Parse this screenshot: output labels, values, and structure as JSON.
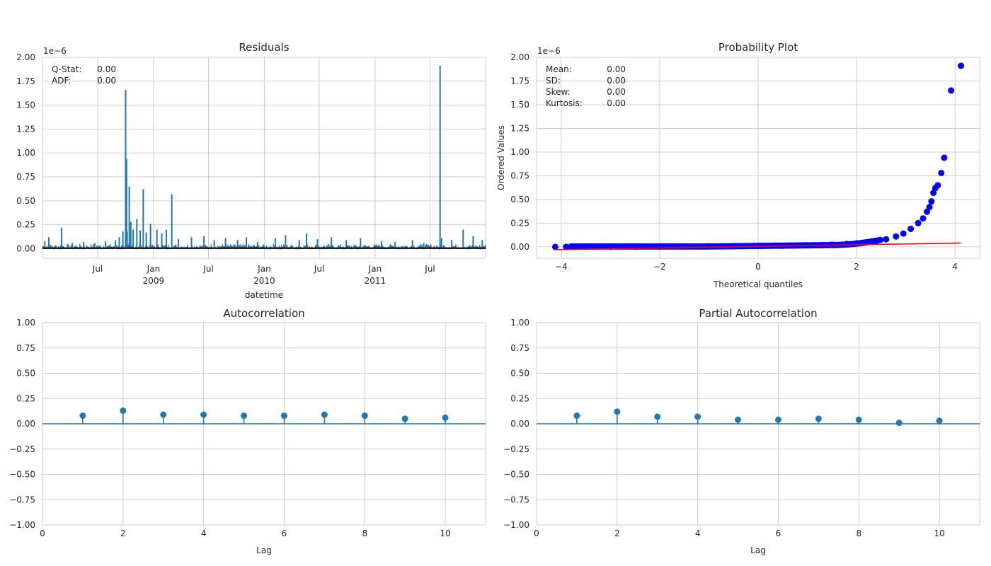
{
  "colors": {
    "series_blue": "#1f77b4",
    "series_black": "#000000",
    "qq_points": "#0000ff",
    "qq_line": "#ff0000",
    "grid": "#cccccc",
    "text": "#262626"
  },
  "chart_data": [
    {
      "id": "residuals",
      "type": "line",
      "title": "Residuals",
      "xlabel": "datetime",
      "ylabel": "",
      "offset_text": "1e−6",
      "ylim": [
        -0.1,
        2.0
      ],
      "yticks": [
        0.0,
        0.25,
        0.5,
        0.75,
        1.0,
        1.25,
        1.5,
        1.75,
        2.0
      ],
      "ytick_labels": [
        "0.00",
        "0.25",
        "0.50",
        "0.75",
        "1.00",
        "1.25",
        "1.50",
        "1.75",
        "2.00"
      ],
      "xlim": [
        "2008-01-01",
        "2011-12-31"
      ],
      "xticks": [
        {
          "date": "2008-07-01",
          "label": "Jul",
          "label2": ""
        },
        {
          "date": "2009-01-01",
          "label": "Jan",
          "label2": "2009"
        },
        {
          "date": "2009-07-01",
          "label": "Jul",
          "label2": ""
        },
        {
          "date": "2010-01-01",
          "label": "Jan",
          "label2": "2010"
        },
        {
          "date": "2010-07-01",
          "label": "Jul",
          "label2": ""
        },
        {
          "date": "2011-01-01",
          "label": "Jan",
          "label2": "2011"
        },
        {
          "date": "2011-07-01",
          "label": "Jul",
          "label2": ""
        }
      ],
      "spikes": [
        {
          "date": "2008-01-09",
          "value": 0.08
        },
        {
          "date": "2008-01-22",
          "value": 0.12
        },
        {
          "date": "2008-03-04",
          "value": 0.22
        },
        {
          "date": "2008-04-08",
          "value": 0.06
        },
        {
          "date": "2008-05-16",
          "value": 0.07
        },
        {
          "date": "2008-06-21",
          "value": 0.06
        },
        {
          "date": "2008-07-27",
          "value": 0.08
        },
        {
          "date": "2008-08-28",
          "value": 0.09
        },
        {
          "date": "2008-09-10",
          "value": 0.12
        },
        {
          "date": "2008-09-22",
          "value": 0.18
        },
        {
          "date": "2008-10-01",
          "value": 1.66
        },
        {
          "date": "2008-10-04",
          "value": 0.94
        },
        {
          "date": "2008-10-06",
          "value": 0.18
        },
        {
          "date": "2008-10-13",
          "value": 0.65
        },
        {
          "date": "2008-10-18",
          "value": 0.28
        },
        {
          "date": "2008-10-26",
          "value": 0.2
        },
        {
          "date": "2008-11-07",
          "value": 0.31
        },
        {
          "date": "2008-11-18",
          "value": 0.19
        },
        {
          "date": "2008-11-28",
          "value": 0.62
        },
        {
          "date": "2008-12-08",
          "value": 0.17
        },
        {
          "date": "2008-12-22",
          "value": 0.26
        },
        {
          "date": "2009-01-12",
          "value": 0.2
        },
        {
          "date": "2009-01-28",
          "value": 0.16
        },
        {
          "date": "2009-02-12",
          "value": 0.2
        },
        {
          "date": "2009-03-02",
          "value": 0.57
        },
        {
          "date": "2009-03-24",
          "value": 0.1
        },
        {
          "date": "2009-05-06",
          "value": 0.12
        },
        {
          "date": "2009-06-16",
          "value": 0.13
        },
        {
          "date": "2009-07-20",
          "value": 0.09
        },
        {
          "date": "2009-08-26",
          "value": 0.11
        },
        {
          "date": "2009-10-05",
          "value": 0.09
        },
        {
          "date": "2009-11-03",
          "value": 0.12
        },
        {
          "date": "2009-12-10",
          "value": 0.07
        },
        {
          "date": "2010-02-06",
          "value": 0.11
        },
        {
          "date": "2010-03-12",
          "value": 0.14
        },
        {
          "date": "2010-04-26",
          "value": 0.09
        },
        {
          "date": "2010-05-20",
          "value": 0.16
        },
        {
          "date": "2010-06-25",
          "value": 0.1
        },
        {
          "date": "2010-08-10",
          "value": 0.12
        },
        {
          "date": "2010-09-28",
          "value": 0.09
        },
        {
          "date": "2010-11-14",
          "value": 0.11
        },
        {
          "date": "2011-01-22",
          "value": 0.08
        },
        {
          "date": "2011-03-08",
          "value": 0.07
        },
        {
          "date": "2011-05-04",
          "value": 0.09
        },
        {
          "date": "2011-06-10",
          "value": 0.06
        },
        {
          "date": "2011-08-03",
          "value": 1.91
        },
        {
          "date": "2011-08-08",
          "value": 0.11
        },
        {
          "date": "2011-09-10",
          "value": 0.09
        },
        {
          "date": "2011-10-18",
          "value": 0.2
        },
        {
          "date": "2011-11-20",
          "value": 0.13
        },
        {
          "date": "2011-12-20",
          "value": 0.09
        }
      ],
      "stats": [
        {
          "label": "Q-Stat:",
          "value": "0.00"
        },
        {
          "label": "ADF:",
          "value": "0.00"
        }
      ]
    },
    {
      "id": "probability-plot",
      "type": "scatter",
      "title": "Probability Plot",
      "xlabel": "Theoretical quantiles",
      "ylabel": "Ordered Values",
      "offset_text": "1e−6",
      "xlim": [
        -4.5,
        4.5
      ],
      "ylim": [
        -0.12,
        2.0
      ],
      "xticks": [
        -4,
        -2,
        0,
        2,
        4
      ],
      "xtick_labels": [
        "−4",
        "−2",
        "0",
        "2",
        "4"
      ],
      "yticks": [
        0.0,
        0.25,
        0.5,
        0.75,
        1.0,
        1.25,
        1.5,
        1.75,
        2.0
      ],
      "ytick_labels": [
        "0.00",
        "0.25",
        "0.50",
        "0.75",
        "1.00",
        "1.25",
        "1.50",
        "1.75",
        "2.00"
      ],
      "fit_line": {
        "x": [
          -4.12,
          4.12
        ],
        "y": [
          -0.03,
          0.04
        ]
      },
      "points": [
        {
          "x": -4.12,
          "y": 0.0
        },
        {
          "x": -3.9,
          "y": 0.0
        },
        {
          "x": -3.75,
          "y": 0.0
        },
        {
          "x": -3.5,
          "y": 0.001
        },
        {
          "x": -3.0,
          "y": 0.002
        },
        {
          "x": -2.5,
          "y": 0.003
        },
        {
          "x": -2.0,
          "y": 0.004
        },
        {
          "x": -1.5,
          "y": 0.005
        },
        {
          "x": -1.0,
          "y": 0.006
        },
        {
          "x": -0.5,
          "y": 0.008
        },
        {
          "x": 0.0,
          "y": 0.01
        },
        {
          "x": 0.5,
          "y": 0.012
        },
        {
          "x": 1.0,
          "y": 0.017
        },
        {
          "x": 1.5,
          "y": 0.024
        },
        {
          "x": 1.8,
          "y": 0.03
        },
        {
          "x": 2.0,
          "y": 0.037
        },
        {
          "x": 2.2,
          "y": 0.048
        },
        {
          "x": 2.4,
          "y": 0.06
        },
        {
          "x": 2.6,
          "y": 0.08
        },
        {
          "x": 2.8,
          "y": 0.11
        },
        {
          "x": 2.95,
          "y": 0.14
        },
        {
          "x": 3.1,
          "y": 0.19
        },
        {
          "x": 3.25,
          "y": 0.25
        },
        {
          "x": 3.35,
          "y": 0.3
        },
        {
          "x": 3.43,
          "y": 0.37
        },
        {
          "x": 3.48,
          "y": 0.42
        },
        {
          "x": 3.52,
          "y": 0.48
        },
        {
          "x": 3.56,
          "y": 0.57
        },
        {
          "x": 3.6,
          "y": 0.62
        },
        {
          "x": 3.65,
          "y": 0.65
        },
        {
          "x": 3.72,
          "y": 0.78
        },
        {
          "x": 3.78,
          "y": 0.94
        },
        {
          "x": 3.92,
          "y": 1.65
        },
        {
          "x": 4.12,
          "y": 1.91
        }
      ],
      "stats": [
        {
          "label": "Mean:",
          "value": "0.00"
        },
        {
          "label": "SD:",
          "value": "0.00"
        },
        {
          "label": "Skew:",
          "value": "0.00"
        },
        {
          "label": "Kurtosis:",
          "value": "0.00"
        }
      ]
    },
    {
      "id": "autocorrelation",
      "type": "scatter",
      "title": "Autocorrelation",
      "xlabel": "Lag",
      "ylabel": "",
      "xlim": [
        0,
        11
      ],
      "ylim": [
        -1.0,
        1.0
      ],
      "xticks": [
        0,
        2,
        4,
        6,
        8,
        10
      ],
      "xtick_labels": [
        "0",
        "2",
        "4",
        "6",
        "8",
        "10"
      ],
      "yticks": [
        -1.0,
        -0.75,
        -0.5,
        -0.25,
        0.0,
        0.25,
        0.5,
        0.75,
        1.0
      ],
      "ytick_labels": [
        "−1.00",
        "−0.75",
        "−0.50",
        "−0.25",
        "0.00",
        "0.25",
        "0.50",
        "0.75",
        "1.00"
      ],
      "lags": [
        1,
        2,
        3,
        4,
        5,
        6,
        7,
        8,
        9,
        10
      ],
      "values": [
        0.08,
        0.13,
        0.09,
        0.09,
        0.08,
        0.08,
        0.09,
        0.08,
        0.05,
        0.06
      ]
    },
    {
      "id": "partial-autocorrelation",
      "type": "scatter",
      "title": "Partial Autocorrelation",
      "xlabel": "Lag",
      "ylabel": "",
      "xlim": [
        0,
        11
      ],
      "ylim": [
        -1.0,
        1.0
      ],
      "xticks": [
        0,
        2,
        4,
        6,
        8,
        10
      ],
      "xtick_labels": [
        "0",
        "2",
        "4",
        "6",
        "8",
        "10"
      ],
      "yticks": [
        -1.0,
        -0.75,
        -0.5,
        -0.25,
        0.0,
        0.25,
        0.5,
        0.75,
        1.0
      ],
      "ytick_labels": [
        "−1.00",
        "−0.75",
        "−0.50",
        "−0.25",
        "0.00",
        "0.25",
        "0.50",
        "0.75",
        "1.00"
      ],
      "lags": [
        1,
        2,
        3,
        4,
        5,
        6,
        7,
        8,
        9,
        10
      ],
      "values": [
        0.08,
        0.12,
        0.07,
        0.07,
        0.04,
        0.04,
        0.05,
        0.04,
        0.01,
        0.03
      ]
    }
  ]
}
